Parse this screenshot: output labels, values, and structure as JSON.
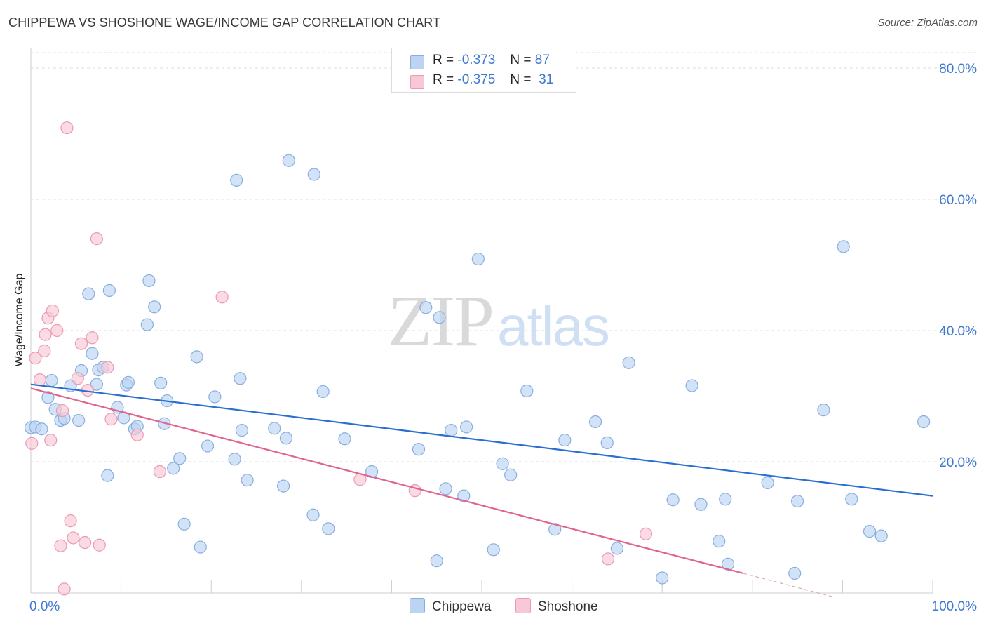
{
  "title": "CHIPPEWA VS SHOSHONE WAGE/INCOME GAP CORRELATION CHART",
  "source": "Source: ZipAtlas.com",
  "watermark": {
    "zip": "ZIP",
    "atlas": "atlas"
  },
  "stats": [
    {
      "r_label": "R =",
      "r_value": "-0.373",
      "n_label": "N =",
      "n_value": "87"
    },
    {
      "r_label": "R =",
      "r_value": "-0.375",
      "n_label": "N =",
      "n_value": "31"
    }
  ],
  "legend": {
    "chippewa": "Chippewa",
    "shoshone": "Shoshone"
  },
  "colors": {
    "chippewa_fill": "#bcd4f2",
    "chippewa_stroke": "#88aee0",
    "chippewa_line": "#2a6fd0",
    "shoshone_fill": "#f8c8d6",
    "shoshone_stroke": "#ec9ab3",
    "shoshone_line": "#e0648e",
    "tick_label": "#3e78d0",
    "grid": "#dddddd"
  },
  "chart_data": {
    "type": "scatter",
    "title": "CHIPPEWA VS SHOSHONE WAGE/INCOME GAP CORRELATION CHART",
    "xlabel": "",
    "ylabel": "Wage/Income Gap",
    "xlim": [
      0,
      100
    ],
    "ylim": [
      0,
      80
    ],
    "x_tick_labels": [
      "0.0%",
      "100.0%"
    ],
    "y_ticks": [
      20,
      40,
      60,
      80
    ],
    "y_tick_labels": [
      "20.0%",
      "40.0%",
      "60.0%",
      "80.0%"
    ],
    "grid": true,
    "legend_position": "bottom",
    "series": [
      {
        "name": "Chippewa",
        "r": -0.373,
        "n": 87,
        "trend": {
          "x": [
            0,
            100
          ],
          "y": [
            31.8,
            14.8
          ]
        },
        "points": [
          [
            0.0,
            25.2
          ],
          [
            0.5,
            25.3
          ],
          [
            1.2,
            25.0
          ],
          [
            1.9,
            29.8
          ],
          [
            2.3,
            32.4
          ],
          [
            2.7,
            28.0
          ],
          [
            3.3,
            26.3
          ],
          [
            3.7,
            26.6
          ],
          [
            4.4,
            31.6
          ],
          [
            5.3,
            26.3
          ],
          [
            5.6,
            33.9
          ],
          [
            6.4,
            45.6
          ],
          [
            6.8,
            36.5
          ],
          [
            7.3,
            31.8
          ],
          [
            7.5,
            34.0
          ],
          [
            8.0,
            34.4
          ],
          [
            8.5,
            17.9
          ],
          [
            8.7,
            46.1
          ],
          [
            9.6,
            28.3
          ],
          [
            10.3,
            26.7
          ],
          [
            10.6,
            31.7
          ],
          [
            10.8,
            32.1
          ],
          [
            11.5,
            25.0
          ],
          [
            11.8,
            25.4
          ],
          [
            12.9,
            40.9
          ],
          [
            13.1,
            47.6
          ],
          [
            13.7,
            43.6
          ],
          [
            14.4,
            32.0
          ],
          [
            14.8,
            25.8
          ],
          [
            15.1,
            29.3
          ],
          [
            15.8,
            19.0
          ],
          [
            16.5,
            20.5
          ],
          [
            17.0,
            10.5
          ],
          [
            18.4,
            36.0
          ],
          [
            18.8,
            7.0
          ],
          [
            19.6,
            22.4
          ],
          [
            20.4,
            29.9
          ],
          [
            22.6,
            20.4
          ],
          [
            22.8,
            62.9
          ],
          [
            23.2,
            32.7
          ],
          [
            23.4,
            24.8
          ],
          [
            24.0,
            17.2
          ],
          [
            27.0,
            25.1
          ],
          [
            28.0,
            16.3
          ],
          [
            28.3,
            23.6
          ],
          [
            28.6,
            65.9
          ],
          [
            31.3,
            11.9
          ],
          [
            31.4,
            63.8
          ],
          [
            32.4,
            30.7
          ],
          [
            33.0,
            9.8
          ],
          [
            34.8,
            23.5
          ],
          [
            37.8,
            18.5
          ],
          [
            43.0,
            21.9
          ],
          [
            43.8,
            43.5
          ],
          [
            45.0,
            4.9
          ],
          [
            45.3,
            42.0
          ],
          [
            46.0,
            15.9
          ],
          [
            46.6,
            24.8
          ],
          [
            48.0,
            14.8
          ],
          [
            48.3,
            25.3
          ],
          [
            49.6,
            50.9
          ],
          [
            51.3,
            6.6
          ],
          [
            52.3,
            19.7
          ],
          [
            53.2,
            18.0
          ],
          [
            55.0,
            30.8
          ],
          [
            58.1,
            9.7
          ],
          [
            59.2,
            23.3
          ],
          [
            62.6,
            26.1
          ],
          [
            63.9,
            22.9
          ],
          [
            65.0,
            6.8
          ],
          [
            66.3,
            35.1
          ],
          [
            70.0,
            2.3
          ],
          [
            71.2,
            14.2
          ],
          [
            73.3,
            31.6
          ],
          [
            74.3,
            13.5
          ],
          [
            76.3,
            7.9
          ],
          [
            77.0,
            14.3
          ],
          [
            77.3,
            4.4
          ],
          [
            81.7,
            16.8
          ],
          [
            84.7,
            3.0
          ],
          [
            85.0,
            14.0
          ],
          [
            87.9,
            27.9
          ],
          [
            90.1,
            52.8
          ],
          [
            91.0,
            14.3
          ],
          [
            93.0,
            9.4
          ],
          [
            94.3,
            8.7
          ],
          [
            99.0,
            26.1
          ]
        ]
      },
      {
        "name": "Shoshone",
        "r": -0.375,
        "n": 31,
        "trend": {
          "x": [
            0,
            79
          ],
          "y": [
            31.2,
            3.0
          ]
        },
        "trend_dashed_extension": {
          "x": [
            79,
            89
          ],
          "y": [
            3.0,
            -0.6
          ]
        },
        "points": [
          [
            0.1,
            22.8
          ],
          [
            0.5,
            35.8
          ],
          [
            1.0,
            32.5
          ],
          [
            1.5,
            36.9
          ],
          [
            1.6,
            39.4
          ],
          [
            1.9,
            41.9
          ],
          [
            2.2,
            23.3
          ],
          [
            2.4,
            43.0
          ],
          [
            2.9,
            40.0
          ],
          [
            3.3,
            7.2
          ],
          [
            3.5,
            27.8
          ],
          [
            3.7,
            0.6
          ],
          [
            4.0,
            70.9
          ],
          [
            4.4,
            11.0
          ],
          [
            4.7,
            8.4
          ],
          [
            5.2,
            32.7
          ],
          [
            5.6,
            38.0
          ],
          [
            6.0,
            7.7
          ],
          [
            6.3,
            30.9
          ],
          [
            6.8,
            38.9
          ],
          [
            7.3,
            54.0
          ],
          [
            7.6,
            7.3
          ],
          [
            8.5,
            34.4
          ],
          [
            8.9,
            26.5
          ],
          [
            11.8,
            24.1
          ],
          [
            14.3,
            18.5
          ],
          [
            21.2,
            45.1
          ],
          [
            36.5,
            17.3
          ],
          [
            42.6,
            15.6
          ],
          [
            64.0,
            5.2
          ],
          [
            68.2,
            9.0
          ]
        ]
      }
    ]
  }
}
